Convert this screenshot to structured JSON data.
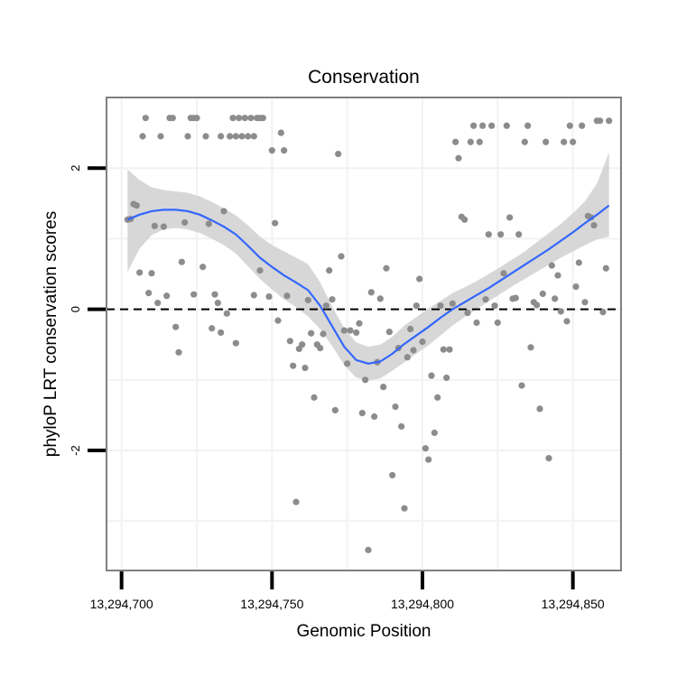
{
  "chart_data": {
    "type": "scatter",
    "title": "Conservation",
    "xlabel": "Genomic Position",
    "ylabel": "phyloP LRT conservation scores",
    "xlim": [
      13294695,
      13294866
    ],
    "ylim": [
      -3.7,
      3.0
    ],
    "x_ticks": [
      {
        "value": 13294700,
        "label": "13,294,700"
      },
      {
        "value": 13294750,
        "label": "13,294,750"
      },
      {
        "value": 13294800,
        "label": "13,294,800"
      },
      {
        "value": 13294850,
        "label": "13,294,850"
      }
    ],
    "y_ticks": [
      {
        "value": -2,
        "label": "-2"
      },
      {
        "value": 0,
        "label": "0"
      },
      {
        "value": 2,
        "label": "2"
      }
    ],
    "grid": true,
    "reference_line": {
      "y": 0,
      "style": "dashed",
      "color": "#000000"
    },
    "colors": {
      "points": "#8c8c8c",
      "smooth_line": "#3366ff",
      "confidence_band": "#d3d3d3",
      "panel_border": "#808080",
      "grid": "#f2f2f2"
    },
    "points": [
      [
        13294702,
        1.27
      ],
      [
        13294703,
        1.28
      ],
      [
        13294704,
        1.49
      ],
      [
        13294705,
        1.47
      ],
      [
        13294706,
        0.52
      ],
      [
        13294707,
        2.45
      ],
      [
        13294708,
        2.71
      ],
      [
        13294709,
        0.23
      ],
      [
        13294710,
        0.51
      ],
      [
        13294711,
        1.18
      ],
      [
        13294712,
        0.09
      ],
      [
        13294713,
        2.45
      ],
      [
        13294714,
        1.17
      ],
      [
        13294715,
        0.19
      ],
      [
        13294716,
        2.71
      ],
      [
        13294717,
        2.71
      ],
      [
        13294718,
        -0.25
      ],
      [
        13294719,
        -0.61
      ],
      [
        13294720,
        0.67
      ],
      [
        13294721,
        1.23
      ],
      [
        13294722,
        2.45
      ],
      [
        13294723,
        2.71
      ],
      [
        13294724,
        2.71
      ],
      [
        13294724,
        0.21
      ],
      [
        13294725,
        2.71
      ],
      [
        13294727,
        0.6
      ],
      [
        13294728,
        2.45
      ],
      [
        13294729,
        1.21
      ],
      [
        13294730,
        -0.27
      ],
      [
        13294731,
        0.21
      ],
      [
        13294732,
        0.09
      ],
      [
        13294733,
        2.45
      ],
      [
        13294733,
        -0.33
      ],
      [
        13294734,
        1.39
      ],
      [
        13294735,
        -0.06
      ],
      [
        13294736,
        2.45
      ],
      [
        13294737,
        2.71
      ],
      [
        13294738,
        2.45
      ],
      [
        13294738,
        -0.48
      ],
      [
        13294739,
        2.71
      ],
      [
        13294740,
        2.45
      ],
      [
        13294741,
        2.71
      ],
      [
        13294742,
        2.45
      ],
      [
        13294743,
        2.71
      ],
      [
        13294744,
        2.45
      ],
      [
        13294744,
        0.2
      ],
      [
        13294745,
        2.71
      ],
      [
        13294746,
        2.71
      ],
      [
        13294746,
        0.55
      ],
      [
        13294747,
        2.71
      ],
      [
        13294749,
        0.18
      ],
      [
        13294750,
        2.25
      ],
      [
        13294751,
        1.22
      ],
      [
        13294752,
        -0.16
      ],
      [
        13294753,
        2.5
      ],
      [
        13294754,
        2.25
      ],
      [
        13294755,
        0.19
      ],
      [
        13294756,
        -0.45
      ],
      [
        13294757,
        -0.8
      ],
      [
        13294758,
        -2.73
      ],
      [
        13294759,
        -0.56
      ],
      [
        13294760,
        -0.5
      ],
      [
        13294761,
        -0.83
      ],
      [
        13294762,
        0.13
      ],
      [
        13294763,
        -0.34
      ],
      [
        13294764,
        -1.25
      ],
      [
        13294765,
        -0.5
      ],
      [
        13294766,
        -0.55
      ],
      [
        13294767,
        -0.35
      ],
      [
        13294768,
        0.05
      ],
      [
        13294769,
        0.55
      ],
      [
        13294770,
        0.14
      ],
      [
        13294771,
        -1.43
      ],
      [
        13294772,
        2.2
      ],
      [
        13294773,
        0.75
      ],
      [
        13294774,
        -0.3
      ],
      [
        13294775,
        -0.77
      ],
      [
        13294776,
        -0.3
      ],
      [
        13294778,
        -0.33
      ],
      [
        13294779,
        -0.2
      ],
      [
        13294780,
        -1.47
      ],
      [
        13294781,
        -1.0
      ],
      [
        13294782,
        -3.41
      ],
      [
        13294783,
        0.24
      ],
      [
        13294784,
        -1.52
      ],
      [
        13294785,
        -0.75
      ],
      [
        13294786,
        0.15
      ],
      [
        13294787,
        -1.1
      ],
      [
        13294788,
        0.58
      ],
      [
        13294789,
        -0.32
      ],
      [
        13294790,
        -2.35
      ],
      [
        13294791,
        -1.38
      ],
      [
        13294792,
        -0.55
      ],
      [
        13294793,
        -1.66
      ],
      [
        13294794,
        -2.82
      ],
      [
        13294795,
        -0.68
      ],
      [
        13294796,
        -0.28
      ],
      [
        13294797,
        -0.58
      ],
      [
        13294798,
        0.05
      ],
      [
        13294799,
        0.43
      ],
      [
        13294800,
        -0.46
      ],
      [
        13294801,
        -1.97
      ],
      [
        13294802,
        -2.13
      ],
      [
        13294803,
        -0.94
      ],
      [
        13294804,
        -1.75
      ],
      [
        13294805,
        -1.25
      ],
      [
        13294806,
        0.05
      ],
      [
        13294807,
        -0.57
      ],
      [
        13294808,
        -0.97
      ],
      [
        13294809,
        -0.57
      ],
      [
        13294810,
        0.08
      ],
      [
        13294811,
        2.37
      ],
      [
        13294812,
        2.14
      ],
      [
        13294813,
        1.31
      ],
      [
        13294814,
        1.27
      ],
      [
        13294815,
        -0.05
      ],
      [
        13294816,
        2.37
      ],
      [
        13294817,
        2.6
      ],
      [
        13294818,
        -0.19
      ],
      [
        13294819,
        2.37
      ],
      [
        13294820,
        2.6
      ],
      [
        13294821,
        0.14
      ],
      [
        13294822,
        1.06
      ],
      [
        13294823,
        2.6
      ],
      [
        13294824,
        0.05
      ],
      [
        13294825,
        -0.19
      ],
      [
        13294826,
        1.06
      ],
      [
        13294827,
        0.51
      ],
      [
        13294828,
        2.6
      ],
      [
        13294829,
        1.3
      ],
      [
        13294830,
        0.15
      ],
      [
        13294831,
        0.16
      ],
      [
        13294832,
        1.06
      ],
      [
        13294833,
        -1.08
      ],
      [
        13294834,
        2.37
      ],
      [
        13294835,
        2.6
      ],
      [
        13294836,
        -0.54
      ],
      [
        13294837,
        0.1
      ],
      [
        13294838,
        0.06
      ],
      [
        13294839,
        -1.41
      ],
      [
        13294840,
        0.22
      ],
      [
        13294841,
        2.37
      ],
      [
        13294842,
        -2.11
      ],
      [
        13294843,
        0.62
      ],
      [
        13294844,
        0.15
      ],
      [
        13294845,
        0.48
      ],
      [
        13294846,
        -0.03
      ],
      [
        13294847,
        2.37
      ],
      [
        13294848,
        -0.17
      ],
      [
        13294849,
        2.6
      ],
      [
        13294850,
        2.37
      ],
      [
        13294851,
        0.32
      ],
      [
        13294852,
        0.66
      ],
      [
        13294853,
        2.6
      ],
      [
        13294854,
        0.1
      ],
      [
        13294855,
        1.32
      ],
      [
        13294856,
        1.3
      ],
      [
        13294857,
        1.19
      ],
      [
        13294858,
        2.67
      ],
      [
        13294859,
        2.67
      ],
      [
        13294860,
        -0.04
      ],
      [
        13294861,
        0.58
      ],
      [
        13294862,
        2.67
      ]
    ],
    "smooth": {
      "x": [
        13294702,
        13294706,
        13294710,
        13294714,
        13294718,
        13294722,
        13294726,
        13294730,
        13294734,
        13294738,
        13294742,
        13294746,
        13294750,
        13294754,
        13294758,
        13294762,
        13294766,
        13294770,
        13294774,
        13294778,
        13294782,
        13294786,
        13294790,
        13294794,
        13294798,
        13294802,
        13294806,
        13294810,
        13294814,
        13294818,
        13294822,
        13294826,
        13294830,
        13294834,
        13294838,
        13294842,
        13294846,
        13294850,
        13294854,
        13294858,
        13294862
      ],
      "y": [
        1.27,
        1.34,
        1.39,
        1.41,
        1.41,
        1.39,
        1.34,
        1.26,
        1.17,
        1.06,
        0.9,
        0.73,
        0.6,
        0.48,
        0.38,
        0.27,
        0.05,
        -0.24,
        -0.53,
        -0.72,
        -0.77,
        -0.74,
        -0.63,
        -0.49,
        -0.37,
        -0.25,
        -0.12,
        0.0,
        0.1,
        0.2,
        0.3,
        0.41,
        0.52,
        0.63,
        0.74,
        0.85,
        0.97,
        1.09,
        1.22,
        1.34,
        1.47
      ],
      "lower": [
        0.53,
        0.86,
        1.05,
        1.13,
        1.15,
        1.13,
        1.08,
        1.0,
        0.91,
        0.79,
        0.61,
        0.43,
        0.28,
        0.14,
        0.03,
        -0.1,
        -0.28,
        -0.52,
        -0.79,
        -0.97,
        -1.01,
        -0.98,
        -0.87,
        -0.75,
        -0.63,
        -0.51,
        -0.37,
        -0.23,
        -0.11,
        0.0,
        0.11,
        0.22,
        0.33,
        0.43,
        0.53,
        0.63,
        0.73,
        0.82,
        0.91,
        0.99,
        1.03
      ],
      "upper": [
        1.98,
        1.83,
        1.73,
        1.69,
        1.67,
        1.65,
        1.6,
        1.52,
        1.43,
        1.33,
        1.19,
        1.03,
        0.91,
        0.82,
        0.73,
        0.64,
        0.38,
        0.04,
        -0.27,
        -0.47,
        -0.53,
        -0.5,
        -0.39,
        -0.23,
        -0.11,
        0.01,
        0.12,
        0.23,
        0.31,
        0.4,
        0.5,
        0.6,
        0.71,
        0.82,
        0.95,
        1.08,
        1.21,
        1.36,
        1.53,
        1.78,
        2.22
      ]
    }
  }
}
